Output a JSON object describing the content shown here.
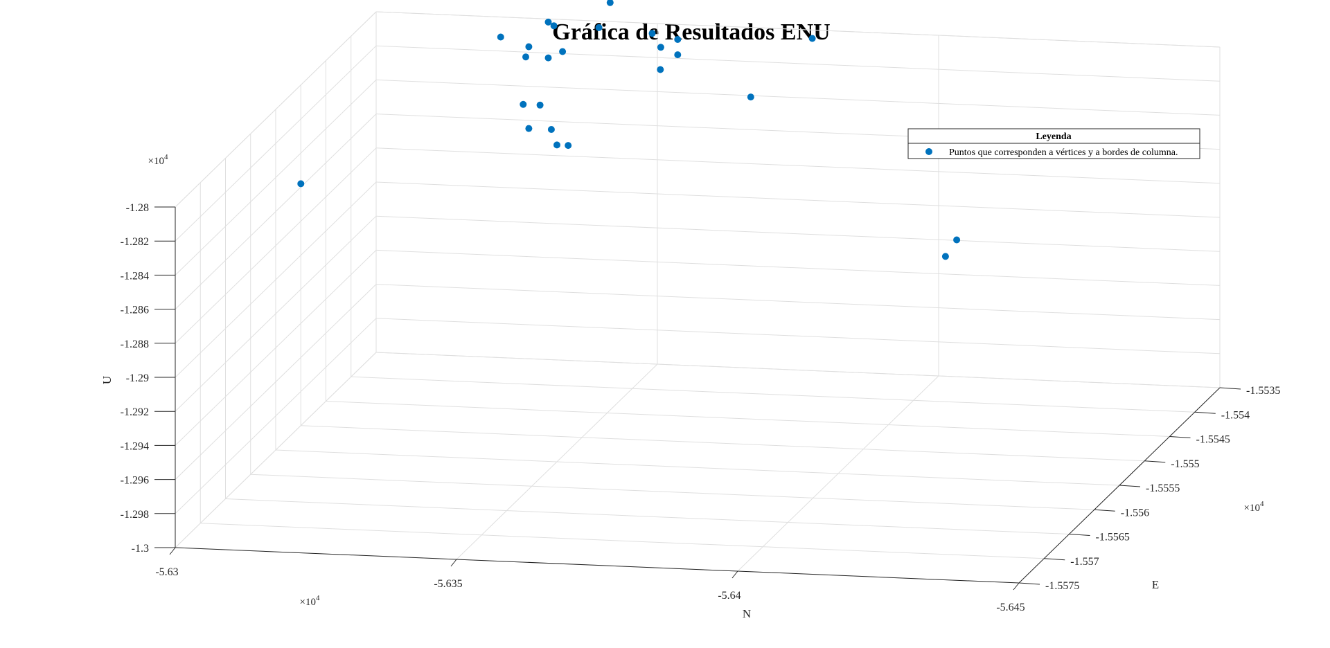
{
  "chart_data": {
    "type": "scatter",
    "title": "Gráfica de Resultados ENU",
    "xlabel": "N",
    "ylabel": "E",
    "zlabel": "U",
    "xlim": [
      -56300,
      -56450
    ],
    "ylim": [
      -15575,
      -15535
    ],
    "zlim": [
      -13000,
      -12800
    ],
    "x_ticks": [
      -56300,
      -56350,
      -56400,
      -56450
    ],
    "x_tick_labels": [
      "-5.63",
      "-5.635",
      "-5.64",
      "-5.645"
    ],
    "y_ticks": [
      -15575,
      -15570,
      -15565,
      -15560,
      -15555,
      -15550,
      -15545,
      -15540,
      -15535
    ],
    "y_tick_labels": [
      "-1.5575",
      "-1.557",
      "-1.5565",
      "-1.556",
      "-1.5555",
      "-1.555",
      "-1.5545",
      "-1.554",
      "-1.5535"
    ],
    "z_ticks": [
      -13000,
      -12980,
      -12960,
      -12940,
      -12920,
      -12900,
      -12880,
      -12860,
      -12840,
      -12820,
      -12800
    ],
    "z_tick_labels": [
      "-1.3",
      "-1.298",
      "-1.296",
      "-1.294",
      "-1.292",
      "-1.29",
      "-1.288",
      "-1.286",
      "-1.284",
      "-1.282",
      "-1.28"
    ],
    "multiplier_label": "×10",
    "multiplier_exponent": "4",
    "grid": true,
    "legend": {
      "title": "Leyenda",
      "placement": "top-right",
      "entries": [
        "Puntos que corresponden a vértices y a bordes de columna."
      ]
    },
    "series": [
      {
        "name": "Puntos que corresponden a vértices y a bordes de columna.",
        "color": "#0072BD",
        "points": [
          {
            "n": -56300,
            "e": -15550,
            "u": -12858
          },
          {
            "n": -56325,
            "e": -15545,
            "u": -12753
          },
          {
            "n": -56340,
            "e": -15555,
            "u": -12752
          },
          {
            "n": -56344,
            "e": -15555,
            "u": -12791
          },
          {
            "n": -56347,
            "e": -15555,
            "u": -12791
          },
          {
            "n": -56350,
            "e": -15555,
            "u": -12814
          },
          {
            "n": -56352,
            "e": -15555,
            "u": -12814
          },
          {
            "n": -56345,
            "e": -15555,
            "u": -12805
          },
          {
            "n": -56349,
            "e": -15555,
            "u": -12805
          },
          {
            "n": -56345,
            "e": -15555,
            "u": -12757
          },
          {
            "n": -56351,
            "e": -15555,
            "u": -12759
          },
          {
            "n": -56335,
            "e": -15550,
            "u": -12724
          },
          {
            "n": -56342,
            "e": -15550,
            "u": -12727
          },
          {
            "n": -56344,
            "e": -15550,
            "u": -12734
          },
          {
            "n": -56344,
            "e": -15550,
            "u": -12757
          },
          {
            "n": -56345,
            "e": -15550,
            "u": -12759
          },
          {
            "n": -56340,
            "e": -15550,
            "u": -12778
          },
          {
            "n": -56344,
            "e": -15550,
            "u": -12778
          },
          {
            "n": -56355,
            "e": -15550,
            "u": -12744
          },
          {
            "n": -56353,
            "e": -15550,
            "u": -12759
          },
          {
            "n": -56364,
            "e": -15550,
            "u": -12769
          },
          {
            "n": -56367,
            "e": -15550,
            "u": -12764
          },
          {
            "n": -56367,
            "e": -15550,
            "u": -12773
          },
          {
            "n": -56352,
            "e": -15545,
            "u": -12739
          },
          {
            "n": -56370,
            "e": -15545,
            "u": -12752
          },
          {
            "n": -56375,
            "e": -15545,
            "u": -12744
          },
          {
            "n": -56358,
            "e": -15545,
            "u": -12776
          },
          {
            "n": -56355,
            "e": -15540,
            "u": -12812
          },
          {
            "n": -56380,
            "e": -15550,
            "u": -12796
          },
          {
            "n": -56382,
            "e": -15540,
            "u": -12790
          },
          {
            "n": -56370,
            "e": -15540,
            "u": -12716
          },
          {
            "n": -56360,
            "e": -15540,
            "u": -12714
          },
          {
            "n": -56360,
            "e": -15540,
            "u": -12710
          },
          {
            "n": -56400,
            "e": -15540,
            "u": -12716
          },
          {
            "n": -56400,
            "e": -15540,
            "u": -12718
          },
          {
            "n": -56430,
            "e": -15565,
            "u": -12830
          },
          {
            "n": -56428,
            "e": -15565,
            "u": -12840
          }
        ]
      }
    ]
  }
}
